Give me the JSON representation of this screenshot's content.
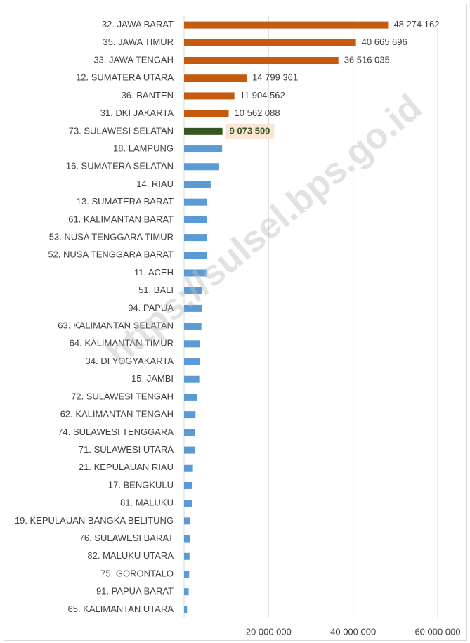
{
  "chart_data": {
    "type": "barh",
    "watermark": "https://sulsel.bps.go.id",
    "categories": [
      "32. JAWA BARAT",
      "35. JAWA TIMUR",
      "33. JAWA TENGAH",
      "12. SUMATERA UTARA",
      "36. BANTEN",
      "31. DKI JAKARTA",
      "73. SULAWESI SELATAN",
      "18. LAMPUNG",
      "16. SUMATERA SELATAN",
      "14. RIAU",
      "13. SUMATERA BARAT",
      "61. KALIMANTAN BARAT",
      "53. NUSA TENGGARA TIMUR",
      "52. NUSA TENGGARA BARAT",
      "11. ACEH",
      "51. BALI",
      "94. PAPUA",
      "63. KALIMANTAN SELATAN",
      "64. KALIMANTAN TIMUR",
      "34. DI YOGYAKARTA",
      "15. JAMBI",
      "72. SULAWESI TENGAH",
      "62. KALIMANTAN TENGAH",
      "74. SULAWESI TENGGARA",
      "71. SULAWESI UTARA",
      "21. KEPULAUAN RIAU",
      "17. BENGKULU",
      "81. MALUKU",
      "19. KEPULAUAN BANGKA BELITUNG",
      "76. SULAWESI BARAT",
      "82. MALUKU UTARA",
      "75. GORONTALO",
      "91. PAPUA BARAT",
      "65. KALIMANTAN UTARA"
    ],
    "values": [
      48274162,
      40665696,
      36516035,
      14799361,
      11904562,
      10562088,
      9073509,
      9000000,
      8300000,
      6300000,
      5500000,
      5400000,
      5400000,
      5500000,
      5300000,
      4300000,
      4300000,
      4100000,
      3800000,
      3700000,
      3600000,
      3000000,
      2700000,
      2600000,
      2600000,
      2100000,
      2000000,
      1850000,
      1400000,
      1400000,
      1300000,
      1200000,
      1100000,
      700000
    ],
    "value_labels": [
      "48 274 162",
      "40 665 696",
      "36 516 035",
      "14 799 361",
      "11 904 562",
      "10 562 088",
      "9 073 509",
      null,
      null,
      null,
      null,
      null,
      null,
      null,
      null,
      null,
      null,
      null,
      null,
      null,
      null,
      null,
      null,
      null,
      null,
      null,
      null,
      null,
      null,
      null,
      null,
      null,
      null,
      null
    ],
    "colors": [
      "#c55a11",
      "#c55a11",
      "#c55a11",
      "#c55a11",
      "#c55a11",
      "#c55a11",
      "#375623",
      "#5b9bd5",
      "#5b9bd5",
      "#5b9bd5",
      "#5b9bd5",
      "#5b9bd5",
      "#5b9bd5",
      "#5b9bd5",
      "#5b9bd5",
      "#5b9bd5",
      "#5b9bd5",
      "#5b9bd5",
      "#5b9bd5",
      "#5b9bd5",
      "#5b9bd5",
      "#5b9bd5",
      "#5b9bd5",
      "#5b9bd5",
      "#5b9bd5",
      "#5b9bd5",
      "#5b9bd5",
      "#5b9bd5",
      "#5b9bd5",
      "#5b9bd5",
      "#5b9bd5",
      "#5b9bd5",
      "#5b9bd5",
      "#5b9bd5"
    ],
    "highlight_color": "#375623",
    "highlight_background": "#fbe5d6",
    "xlim": [
      0,
      60000000
    ],
    "xticks": [
      {
        "value": 20000000,
        "label": "20 000 000"
      },
      {
        "value": 40000000,
        "label": "40 000 000"
      },
      {
        "value": 60000000,
        "label": "60 000 000"
      }
    ],
    "grid": true
  }
}
